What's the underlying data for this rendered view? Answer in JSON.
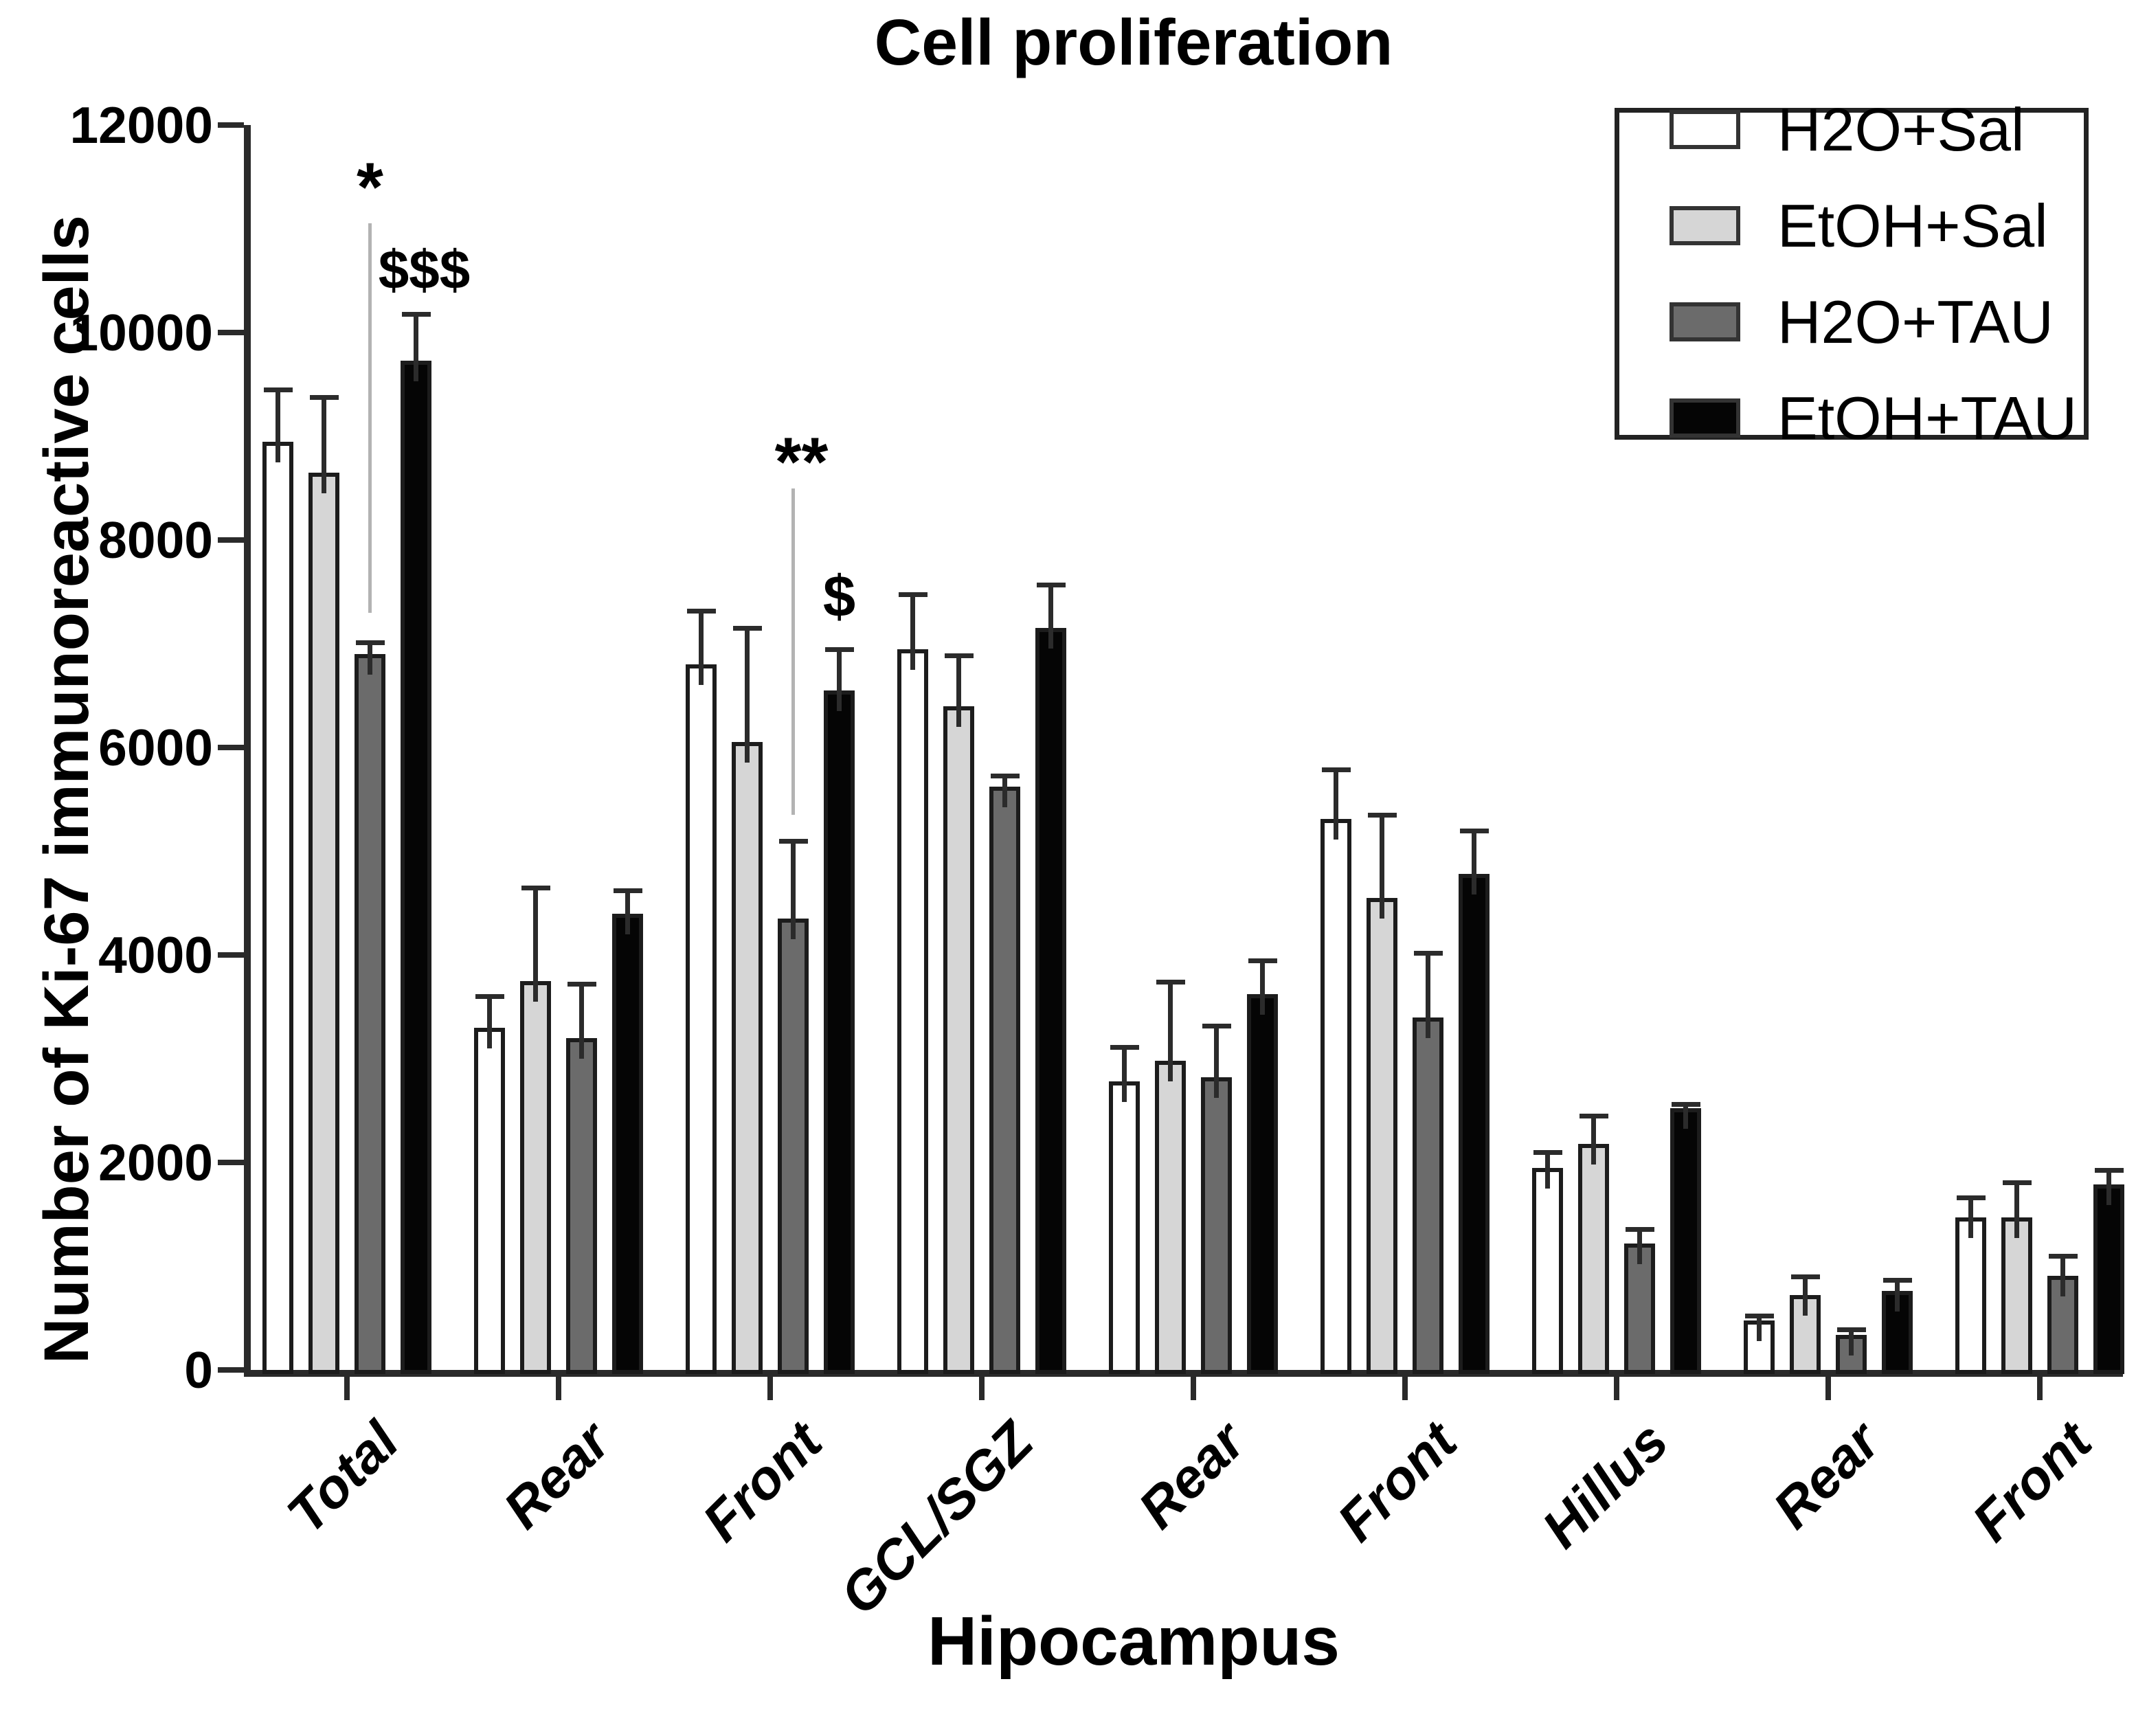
{
  "title": "Cell proliferation",
  "x_axis_title": "Hipocampus",
  "y_axis_title": "Number of Ki-67 immunoreactive cells",
  "legend": {
    "position": "top-right",
    "items": [
      {
        "label": "H2O+Sal",
        "color": "#ffffff"
      },
      {
        "label": "EtOH+Sal",
        "color": "#d6d6d6"
      },
      {
        "label": "H2O+TAU",
        "color": "#6b6b6b"
      },
      {
        "label": "EtOH+TAU",
        "color": "#050505"
      }
    ]
  },
  "chart_data": {
    "type": "bar",
    "title": "Cell proliferation",
    "xlabel": "Hipocampus",
    "ylabel": "Number of Ki-67 immunoreactive cells",
    "ylim": [
      0,
      12000
    ],
    "ytick_step": 2000,
    "ytick_labels": [
      "0",
      "2000",
      "4000",
      "6000",
      "8000",
      "10000",
      "12000"
    ],
    "grid": false,
    "legend_position": "top-right",
    "error_bars": "upward SEM whiskers with caps",
    "categories": [
      "Total",
      "Rear",
      "Front",
      "GCL/SGZ",
      "Rear",
      "Front",
      "Hillus",
      "Rear",
      "Front"
    ],
    "series": [
      {
        "name": "H2O+Sal",
        "color": "#ffffff",
        "values": [
          8950,
          3300,
          6800,
          6950,
          2780,
          5310,
          1950,
          480,
          1470
        ],
        "errors_up": [
          500,
          300,
          520,
          530,
          330,
          480,
          150,
          40,
          190
        ]
      },
      {
        "name": "EtOH+Sal",
        "color": "#d6d6d6",
        "values": [
          8650,
          3750,
          6050,
          6400,
          2980,
          4550,
          2180,
          720,
          1470
        ],
        "errors_up": [
          730,
          900,
          1100,
          490,
          760,
          800,
          270,
          180,
          340
        ]
      },
      {
        "name": "H2O+TAU",
        "color": "#6b6b6b",
        "values": [
          6900,
          3200,
          4350,
          5620,
          2820,
          3400,
          1220,
          340,
          910
        ],
        "errors_up": [
          110,
          520,
          750,
          110,
          500,
          620,
          140,
          50,
          190
        ]
      },
      {
        "name": "EtOH+TAU",
        "color": "#050505",
        "values": [
          9730,
          4400,
          6550,
          7150,
          3620,
          4780,
          2520,
          760,
          1790
        ],
        "errors_up": [
          450,
          220,
          400,
          420,
          330,
          420,
          40,
          110,
          140
        ]
      }
    ],
    "annotations": [
      {
        "text": "*",
        "category_index": 0,
        "series_index": 2,
        "y": 11400,
        "font_size": 100,
        "line_from": 11050,
        "line_to": 7300
      },
      {
        "text": "$$$",
        "category_index": 0,
        "series_index": 3,
        "y": 10600,
        "font_size": 80
      },
      {
        "text": "**",
        "category_index": 2,
        "series_index": 2,
        "y": 8750,
        "font_size": 100,
        "line_from": 8500,
        "line_to": 5350
      },
      {
        "text": "$",
        "category_index": 2,
        "series_index": 3,
        "y": 7450,
        "font_size": 85
      }
    ]
  }
}
